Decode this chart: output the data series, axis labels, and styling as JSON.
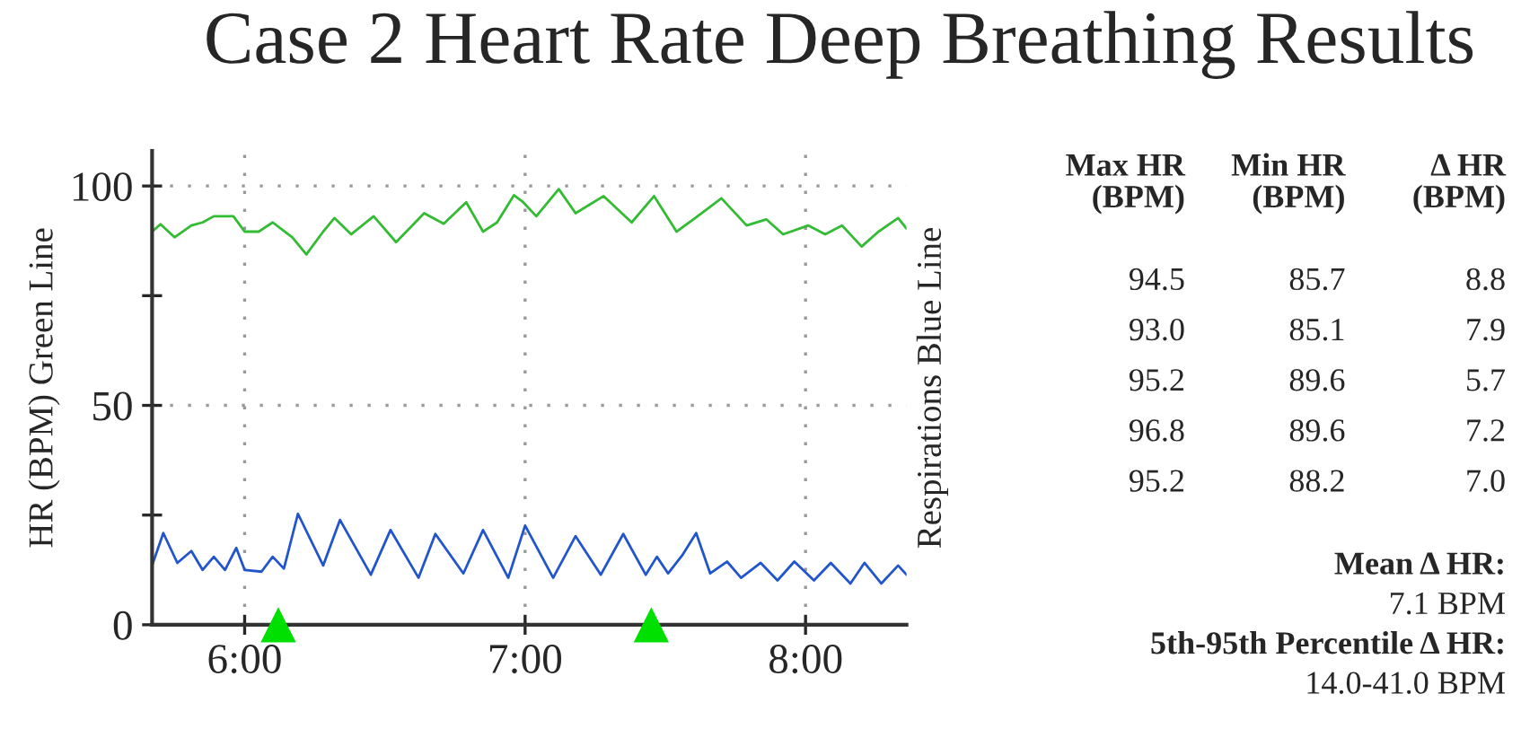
{
  "chart_data": [
    {
      "type": "line",
      "title": "Case 2 Heart Rate Deep Breathing Results",
      "ylabel": "HR (BPM) Green Line",
      "y2label": "Respirations Blue Line",
      "xlim": [
        5.67,
        8.36
      ],
      "xticks": [
        {
          "value": 6,
          "label": "6:00"
        },
        {
          "value": 7,
          "label": "7:00"
        },
        {
          "value": 8,
          "label": "8:00"
        }
      ],
      "ylim": [
        0,
        108
      ],
      "yticks": [
        0,
        {
          "value": 25,
          "label": null
        },
        50,
        {
          "value": 75,
          "label": null
        },
        100
      ],
      "grid": true,
      "legend": false,
      "series": [
        {
          "type": "line",
          "color": "#33bb33",
          "x": [
            5.67,
            5.7,
            5.75,
            5.81,
            5.85,
            5.89,
            5.96,
            6.0,
            6.05,
            6.1,
            6.17,
            6.22,
            6.28,
            6.32,
            6.38,
            6.46,
            6.54,
            6.64,
            6.71,
            6.79,
            6.85,
            6.9,
            6.96,
            6.99,
            7.04,
            7.12,
            7.18,
            7.28,
            7.38,
            7.46,
            7.54,
            7.6,
            7.7,
            7.79,
            7.86,
            7.92,
            8.01,
            8.07,
            8.13,
            8.2,
            8.26,
            8.33,
            8.36
          ],
          "values": [
            89.6,
            91.3,
            88.3,
            91.0,
            91.7,
            93.1,
            93.1,
            89.6,
            89.6,
            91.7,
            88.3,
            84.4,
            89.6,
            92.7,
            89.0,
            93.1,
            87.2,
            93.8,
            91.4,
            96.3,
            89.6,
            91.7,
            97.9,
            96.5,
            93.1,
            99.3,
            93.8,
            97.7,
            91.7,
            97.7,
            89.6,
            92.4,
            97.2,
            91.0,
            92.4,
            89.0,
            91.0,
            89.0,
            91.0,
            86.2,
            89.6,
            92.7,
            90.3
          ]
        },
        {
          "type": "line",
          "color": "#2255cc",
          "x": [
            5.67,
            5.71,
            5.76,
            5.81,
            5.85,
            5.89,
            5.93,
            5.97,
            6.0,
            6.06,
            6.1,
            6.14,
            6.19,
            6.28,
            6.34,
            6.45,
            6.52,
            6.62,
            6.68,
            6.78,
            6.85,
            6.94,
            7.0,
            7.1,
            7.18,
            7.27,
            7.35,
            7.43,
            7.47,
            7.51,
            7.56,
            7.61,
            7.66,
            7.72,
            7.77,
            7.84,
            7.9,
            7.96,
            8.03,
            8.09,
            8.16,
            8.21,
            8.27,
            8.33,
            8.36
          ],
          "values": [
            13.5,
            20.9,
            14.1,
            16.8,
            12.5,
            15.5,
            12.5,
            17.5,
            12.5,
            12.1,
            15.5,
            12.8,
            25.3,
            13.5,
            23.9,
            11.4,
            21.6,
            10.7,
            20.7,
            11.7,
            21.6,
            10.7,
            22.6,
            10.7,
            20.2,
            11.4,
            20.7,
            11.4,
            15.5,
            11.7,
            15.8,
            20.9,
            11.7,
            14.4,
            10.7,
            14.1,
            10.1,
            14.4,
            10.1,
            14.1,
            9.4,
            14.1,
            9.4,
            13.5,
            11.4
          ]
        },
        {
          "type": "scatter",
          "color": "#00e000",
          "marker": "triangle",
          "x": [
            6.12,
            7.45
          ],
          "values": [
            0,
            0
          ]
        }
      ]
    },
    {
      "type": "other",
      "annotations": [
        "Max HR\n(BPM)",
        "Min HR\n(BPM)",
        "Δ HR\n(BPM)",
        "94.5",
        "85.7",
        "8.8",
        "93.0",
        "85.1",
        "7.9",
        "95.2",
        "89.6",
        "5.7",
        "96.8",
        "89.6",
        "7.2",
        "95.2",
        "88.2",
        "7.0",
        "Mean Δ HR:",
        "7.1 BPM",
        "5th-95th Percentile Δ HR:",
        "14.0-41.0 BPM"
      ]
    }
  ]
}
